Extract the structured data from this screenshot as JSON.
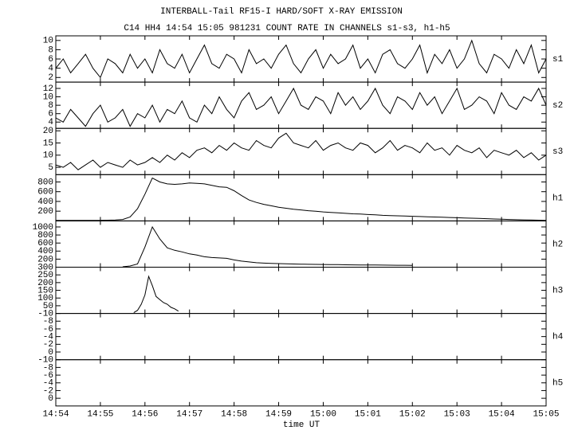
{
  "chart_data": [
    {
      "type": "line",
      "title": "INTERBALL-Tail RF15-I HARD/SOFT X-RAY EMISSION",
      "subtitle": "C14 HH4 14:54 15:05 981231  COUNT RATE IN CHANNELS s1-s3, h1-h5",
      "label": "s1",
      "xlim": [
        53640,
        54300
      ],
      "xticks": [
        {
          "value": 53640,
          "label": "14:54"
        },
        {
          "value": 53700,
          "label": "14:55"
        },
        {
          "value": 53760,
          "label": "14:56"
        },
        {
          "value": 53820,
          "label": "14:57"
        },
        {
          "value": 53880,
          "label": "14:58"
        },
        {
          "value": 53940,
          "label": "14:59"
        },
        {
          "value": 54000,
          "label": "15:00"
        },
        {
          "value": 54060,
          "label": "15:01"
        },
        {
          "value": 54120,
          "label": "15:02"
        },
        {
          "value": 54180,
          "label": "15:03"
        },
        {
          "value": 54240,
          "label": "15:04"
        },
        {
          "value": 54300,
          "label": "15:05"
        }
      ],
      "ylim": [
        1,
        11
      ],
      "yticks": [
        2,
        4,
        6,
        8,
        10
      ],
      "x": [
        53640,
        53650,
        53660,
        53670,
        53680,
        53690,
        53700,
        53710,
        53720,
        53730,
        53740,
        53750,
        53760,
        53770,
        53780,
        53790,
        53800,
        53810,
        53820,
        53830,
        53840,
        53850,
        53860,
        53870,
        53880,
        53890,
        53900,
        53910,
        53920,
        53930,
        53940,
        53950,
        53960,
        53970,
        53980,
        53990,
        54000,
        54010,
        54020,
        54030,
        54040,
        54050,
        54060,
        54070,
        54080,
        54090,
        54100,
        54110,
        54120,
        54130,
        54140,
        54150,
        54160,
        54170,
        54180,
        54190,
        54200,
        54210,
        54220,
        54230,
        54240,
        54250,
        54260,
        54270,
        54280,
        54290,
        54300
      ],
      "series": [
        {
          "color": "#000000",
          "values": [
            4,
            6,
            3,
            5,
            7,
            4,
            2,
            6,
            5,
            3,
            7,
            4,
            6,
            3,
            8,
            5,
            4,
            7,
            3,
            6,
            9,
            5,
            4,
            7,
            6,
            3,
            8,
            5,
            6,
            4,
            7,
            9,
            5,
            3,
            6,
            8,
            4,
            7,
            5,
            6,
            9,
            4,
            6,
            3,
            7,
            8,
            5,
            4,
            6,
            9,
            3,
            7,
            5,
            8,
            4,
            6,
            10,
            5,
            3,
            7,
            6,
            4,
            8,
            5,
            9,
            3,
            6
          ]
        }
      ]
    },
    {
      "type": "line",
      "label": "s2",
      "xlim": [
        53640,
        54300
      ],
      "xticks": [
        53640,
        53700,
        53760,
        53820,
        53880,
        53940,
        54000,
        54060,
        54120,
        54180,
        54240,
        54300
      ],
      "ylim": [
        2.5,
        13.5
      ],
      "yticks": [
        4,
        6,
        8,
        10,
        12
      ],
      "x": [
        53640,
        53650,
        53660,
        53670,
        53680,
        53690,
        53700,
        53710,
        53720,
        53730,
        53740,
        53750,
        53760,
        53770,
        53780,
        53790,
        53800,
        53810,
        53820,
        53830,
        53840,
        53850,
        53860,
        53870,
        53880,
        53890,
        53900,
        53910,
        53920,
        53930,
        53940,
        53950,
        53960,
        53970,
        53980,
        53990,
        54000,
        54010,
        54020,
        54030,
        54040,
        54050,
        54060,
        54070,
        54080,
        54090,
        54100,
        54110,
        54120,
        54130,
        54140,
        54150,
        54160,
        54170,
        54180,
        54190,
        54200,
        54210,
        54220,
        54230,
        54240,
        54250,
        54260,
        54270,
        54280,
        54290,
        54300
      ],
      "series": [
        {
          "color": "#000000",
          "values": [
            5,
            4,
            7,
            5,
            3,
            6,
            8,
            4,
            5,
            7,
            3,
            6,
            5,
            8,
            4,
            7,
            6,
            9,
            5,
            4,
            8,
            6,
            10,
            7,
            5,
            9,
            11,
            7,
            8,
            10,
            6,
            9,
            12,
            8,
            7,
            10,
            9,
            6,
            11,
            8,
            10,
            7,
            9,
            12,
            8,
            6,
            10,
            9,
            7,
            11,
            8,
            10,
            6,
            9,
            12,
            7,
            8,
            10,
            9,
            6,
            11,
            8,
            7,
            10,
            9,
            12,
            8
          ]
        }
      ]
    },
    {
      "type": "line",
      "label": "s3",
      "xlim": [
        53640,
        54300
      ],
      "xticks": [
        53640,
        53700,
        53760,
        53820,
        53880,
        53940,
        54000,
        54060,
        54120,
        54180,
        54240,
        54300
      ],
      "ylim": [
        2,
        21
      ],
      "yticks": [
        5,
        10,
        15,
        20
      ],
      "x": [
        53640,
        53650,
        53660,
        53670,
        53680,
        53690,
        53700,
        53710,
        53720,
        53730,
        53740,
        53750,
        53760,
        53770,
        53780,
        53790,
        53800,
        53810,
        53820,
        53830,
        53840,
        53850,
        53860,
        53870,
        53880,
        53890,
        53900,
        53910,
        53920,
        53930,
        53940,
        53950,
        53960,
        53970,
        53980,
        53990,
        54000,
        54010,
        54020,
        54030,
        54040,
        54050,
        54060,
        54070,
        54080,
        54090,
        54100,
        54110,
        54120,
        54130,
        54140,
        54150,
        54160,
        54170,
        54180,
        54190,
        54200,
        54210,
        54220,
        54230,
        54240,
        54250,
        54260,
        54270,
        54280,
        54290,
        54300
      ],
      "series": [
        {
          "color": "#000000",
          "values": [
            6,
            5,
            7,
            4,
            6,
            8,
            5,
            7,
            6,
            5,
            8,
            6,
            7,
            9,
            7,
            10,
            8,
            11,
            9,
            12,
            13,
            11,
            14,
            12,
            15,
            13,
            12,
            16,
            14,
            13,
            17,
            19,
            15,
            14,
            13,
            16,
            12,
            14,
            15,
            13,
            12,
            15,
            14,
            11,
            13,
            16,
            12,
            14,
            13,
            11,
            15,
            12,
            13,
            10,
            14,
            12,
            11,
            13,
            9,
            12,
            11,
            10,
            12,
            9,
            11,
            8,
            10
          ]
        }
      ]
    },
    {
      "type": "line",
      "label": "h1",
      "xlim": [
        53640,
        54300
      ],
      "xticks": [
        53640,
        53700,
        53760,
        53820,
        53880,
        53940,
        54000,
        54060,
        54120,
        54180,
        54240,
        54300
      ],
      "ylim": [
        0,
        950
      ],
      "yticks": [
        200,
        400,
        600,
        800
      ],
      "x": [
        53640,
        53650,
        53660,
        53670,
        53680,
        53690,
        53700,
        53710,
        53720,
        53730,
        53740,
        53750,
        53760,
        53770,
        53780,
        53790,
        53800,
        53810,
        53820,
        53830,
        53840,
        53850,
        53860,
        53870,
        53880,
        53890,
        53900,
        53910,
        53920,
        53930,
        53940,
        53950,
        53960,
        53970,
        53980,
        53990,
        54000,
        54010,
        54020,
        54030,
        54040,
        54050,
        54060,
        54070,
        54080,
        54090,
        54100,
        54110,
        54120,
        54130,
        54140,
        54150,
        54160,
        54170,
        54180,
        54190,
        54200,
        54210,
        54220,
        54230,
        54240,
        54250,
        54260,
        54270,
        54280,
        54290,
        54300
      ],
      "series": [
        {
          "color": "#000000",
          "values": [
            10,
            10,
            12,
            10,
            11,
            10,
            12,
            15,
            20,
            30,
            80,
            250,
            550,
            880,
            800,
            760,
            750,
            760,
            780,
            770,
            760,
            730,
            700,
            690,
            620,
            520,
            430,
            380,
            340,
            310,
            280,
            260,
            240,
            225,
            210,
            200,
            185,
            175,
            165,
            155,
            145,
            140,
            130,
            125,
            115,
            110,
            105,
            100,
            95,
            90,
            85,
            80,
            75,
            70,
            65,
            60,
            55,
            50,
            45,
            40,
            35,
            30,
            25,
            22,
            18,
            15,
            12
          ]
        }
      ]
    },
    {
      "type": "line",
      "label": "h2",
      "xlim": [
        53640,
        54300
      ],
      "xticks": [
        53640,
        53700,
        53760,
        53820,
        53880,
        53940,
        54000,
        54060,
        54120,
        54180,
        54240,
        54300
      ],
      "ylim": [
        0,
        1150
      ],
      "yticks": [
        200,
        400,
        600,
        800,
        1000
      ],
      "x": [
        53730,
        53740,
        53750,
        53760,
        53770,
        53780,
        53790,
        53800,
        53810,
        53820,
        53830,
        53840,
        53850,
        53860,
        53870,
        53880,
        53890,
        53900,
        53910,
        53920,
        53930,
        53940,
        53950,
        53960,
        53970,
        53980,
        53990,
        54000,
        54010,
        54020,
        54030,
        54040,
        54050,
        54060,
        54070,
        54080,
        54090,
        54100,
        54110,
        54120
      ],
      "series": [
        {
          "color": "#000000",
          "values": [
            10,
            30,
            80,
            500,
            1000,
            700,
            480,
            420,
            380,
            330,
            300,
            260,
            240,
            230,
            220,
            180,
            150,
            130,
            110,
            100,
            95,
            90,
            85,
            80,
            75,
            72,
            70,
            68,
            65,
            63,
            60,
            58,
            56,
            55,
            53,
            52,
            50,
            48,
            47,
            45
          ]
        }
      ]
    },
    {
      "type": "line",
      "label": "h3",
      "xlim": [
        53640,
        54300
      ],
      "xticks": [
        53640,
        53700,
        53760,
        53820,
        53880,
        53940,
        54000,
        54060,
        54120,
        54180,
        54240,
        54300
      ],
      "ylim": [
        0,
        300
      ],
      "yticks": [
        50,
        100,
        150,
        200,
        250,
        300
      ],
      "x": [
        53745,
        53750,
        53755,
        53760,
        53765,
        53770,
        53775,
        53780,
        53785,
        53790,
        53795,
        53800,
        53805
      ],
      "series": [
        {
          "color": "#000000",
          "values": [
            5,
            20,
            60,
            120,
            240,
            180,
            110,
            90,
            70,
            60,
            40,
            30,
            15
          ]
        }
      ]
    },
    {
      "type": "line",
      "label": "h4",
      "xlim": [
        53640,
        54300
      ],
      "xticks": [
        53640,
        53700,
        53760,
        53820,
        53880,
        53940,
        54000,
        54060,
        54120,
        54180,
        54240,
        54300
      ],
      "ylim": [
        2,
        -10
      ],
      "yticks": [
        -10,
        -8,
        -6,
        -4,
        -2,
        0
      ],
      "series": []
    },
    {
      "type": "line",
      "label": "h5",
      "xlabel": "time UT",
      "xlim": [
        53640,
        54300
      ],
      "xticks": [
        {
          "value": 53640,
          "label": "14:54"
        },
        {
          "value": 53700,
          "label": "14:55"
        },
        {
          "value": 53760,
          "label": "14:56"
        },
        {
          "value": 53820,
          "label": "14:57"
        },
        {
          "value": 53880,
          "label": "14:58"
        },
        {
          "value": 53940,
          "label": "14:59"
        },
        {
          "value": 54000,
          "label": "15:00"
        },
        {
          "value": 54060,
          "label": "15:01"
        },
        {
          "value": 54120,
          "label": "15:02"
        },
        {
          "value": 54180,
          "label": "15:03"
        },
        {
          "value": 54240,
          "label": "15:04"
        },
        {
          "value": 54300,
          "label": "15:05"
        }
      ],
      "ylim": [
        2,
        -10
      ],
      "yticks": [
        -10,
        -8,
        -6,
        -4,
        -2,
        0
      ],
      "series": []
    }
  ]
}
